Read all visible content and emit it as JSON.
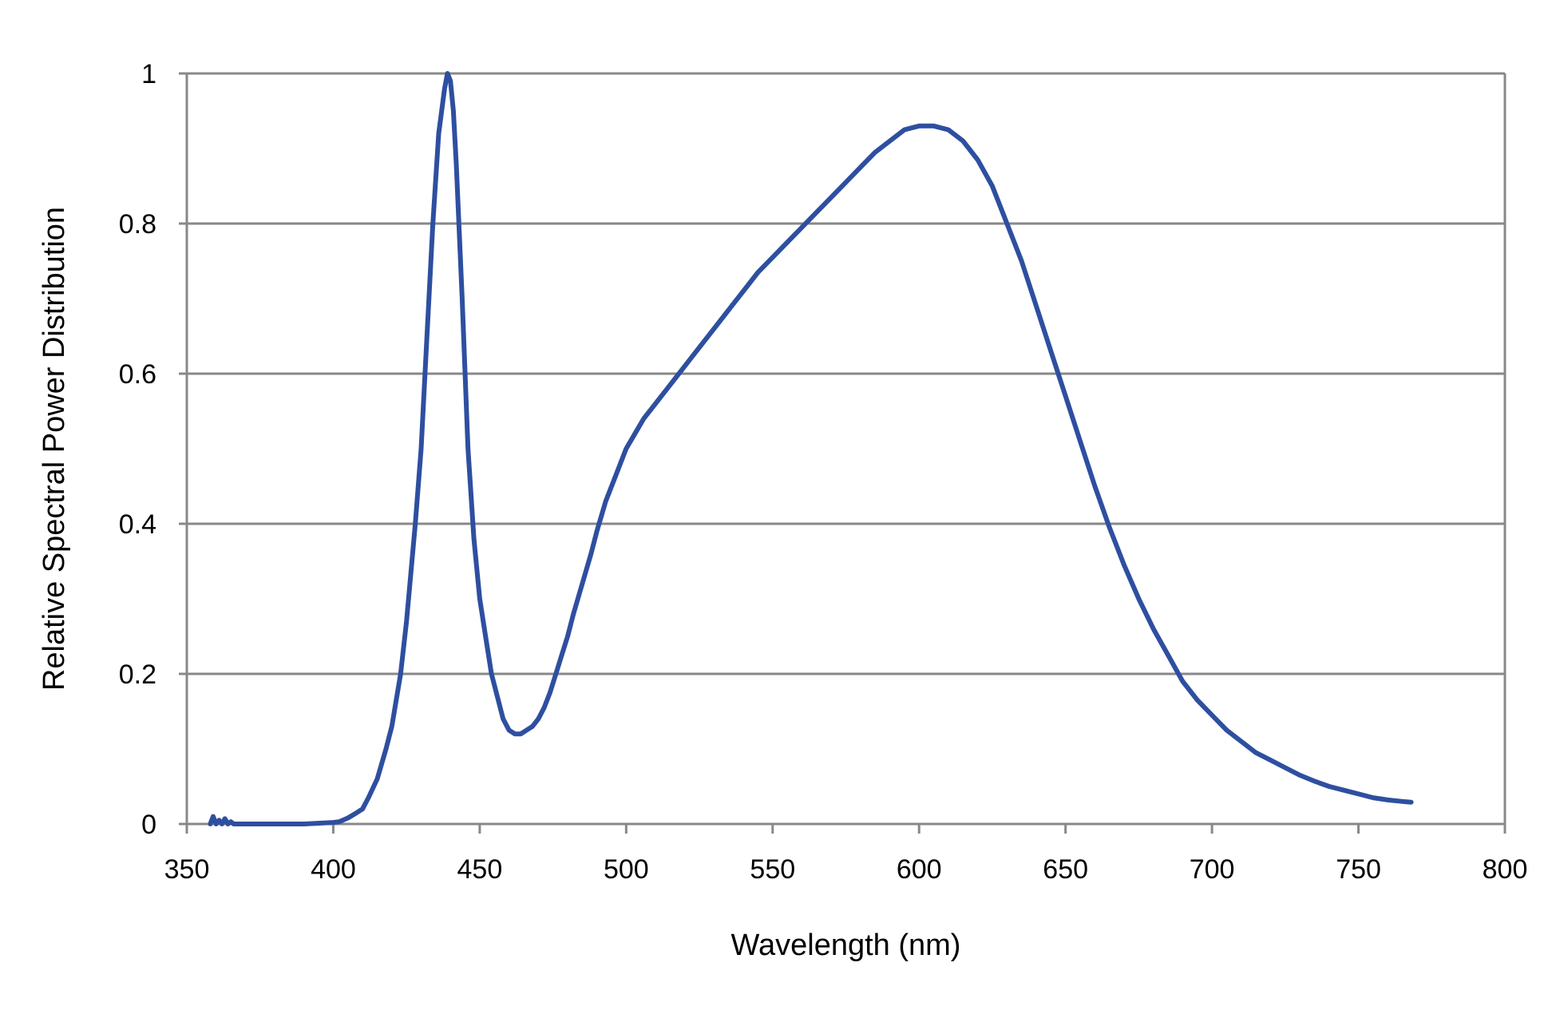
{
  "chart_data": {
    "type": "line",
    "title": "",
    "xlabel": "Wavelength (nm)",
    "ylabel": "Relative Spectral Power Distribution",
    "xlim": [
      350,
      800
    ],
    "ylim": [
      0,
      1
    ],
    "x_ticks": [
      "350",
      "400",
      "450",
      "500",
      "550",
      "600",
      "650",
      "700",
      "750",
      "800"
    ],
    "y_ticks": [
      "0",
      "0.2",
      "0.4",
      "0.6",
      "0.8",
      "1"
    ],
    "grid": "horizontal",
    "legend": "none",
    "colors": {
      "series": "#2e4fa0",
      "grid": "#888888",
      "axis": "#888888"
    },
    "series": [
      {
        "x": [
          358,
          359,
          360,
          361,
          362,
          363,
          364,
          365,
          366,
          368,
          370,
          380,
          390,
          400,
          402,
          405,
          408,
          410,
          412,
          415,
          418,
          420,
          423,
          425,
          428,
          430,
          432,
          434,
          436,
          438,
          439,
          440,
          441,
          442,
          444,
          446,
          448,
          450,
          452,
          454,
          456,
          458,
          460,
          462,
          464,
          466,
          468,
          470,
          472,
          474,
          476,
          478,
          480,
          482,
          485,
          488,
          490,
          493,
          496,
          498,
          500,
          503,
          506,
          510,
          514,
          518,
          522,
          526,
          530,
          535,
          540,
          545,
          550,
          555,
          560,
          565,
          570,
          575,
          580,
          585,
          590,
          595,
          600,
          605,
          610,
          615,
          620,
          625,
          630,
          635,
          640,
          645,
          650,
          655,
          660,
          665,
          670,
          675,
          680,
          685,
          690,
          695,
          700,
          705,
          710,
          715,
          720,
          725,
          730,
          735,
          740,
          745,
          750,
          755,
          760,
          765,
          768
        ],
        "y": [
          0.0,
          0.01,
          0.0,
          0.005,
          0.0,
          0.007,
          0.0,
          0.003,
          0.0,
          0.0,
          0.0,
          0.0,
          0.0,
          0.002,
          0.003,
          0.008,
          0.015,
          0.02,
          0.035,
          0.06,
          0.1,
          0.13,
          0.2,
          0.27,
          0.4,
          0.5,
          0.65,
          0.8,
          0.92,
          0.98,
          1.0,
          0.99,
          0.95,
          0.88,
          0.7,
          0.5,
          0.38,
          0.3,
          0.25,
          0.2,
          0.17,
          0.14,
          0.125,
          0.12,
          0.12,
          0.125,
          0.13,
          0.14,
          0.155,
          0.175,
          0.2,
          0.225,
          0.25,
          0.28,
          0.32,
          0.36,
          0.39,
          0.43,
          0.46,
          0.48,
          0.5,
          0.52,
          0.54,
          0.56,
          0.58,
          0.6,
          0.62,
          0.64,
          0.66,
          0.685,
          0.71,
          0.735,
          0.755,
          0.775,
          0.795,
          0.815,
          0.835,
          0.855,
          0.875,
          0.895,
          0.91,
          0.925,
          0.93,
          0.93,
          0.925,
          0.91,
          0.885,
          0.85,
          0.8,
          0.75,
          0.69,
          0.63,
          0.57,
          0.51,
          0.45,
          0.395,
          0.345,
          0.3,
          0.26,
          0.225,
          0.19,
          0.165,
          0.145,
          0.125,
          0.11,
          0.095,
          0.085,
          0.075,
          0.065,
          0.057,
          0.05,
          0.045,
          0.04,
          0.035,
          0.032,
          0.03,
          0.029
        ]
      }
    ]
  }
}
